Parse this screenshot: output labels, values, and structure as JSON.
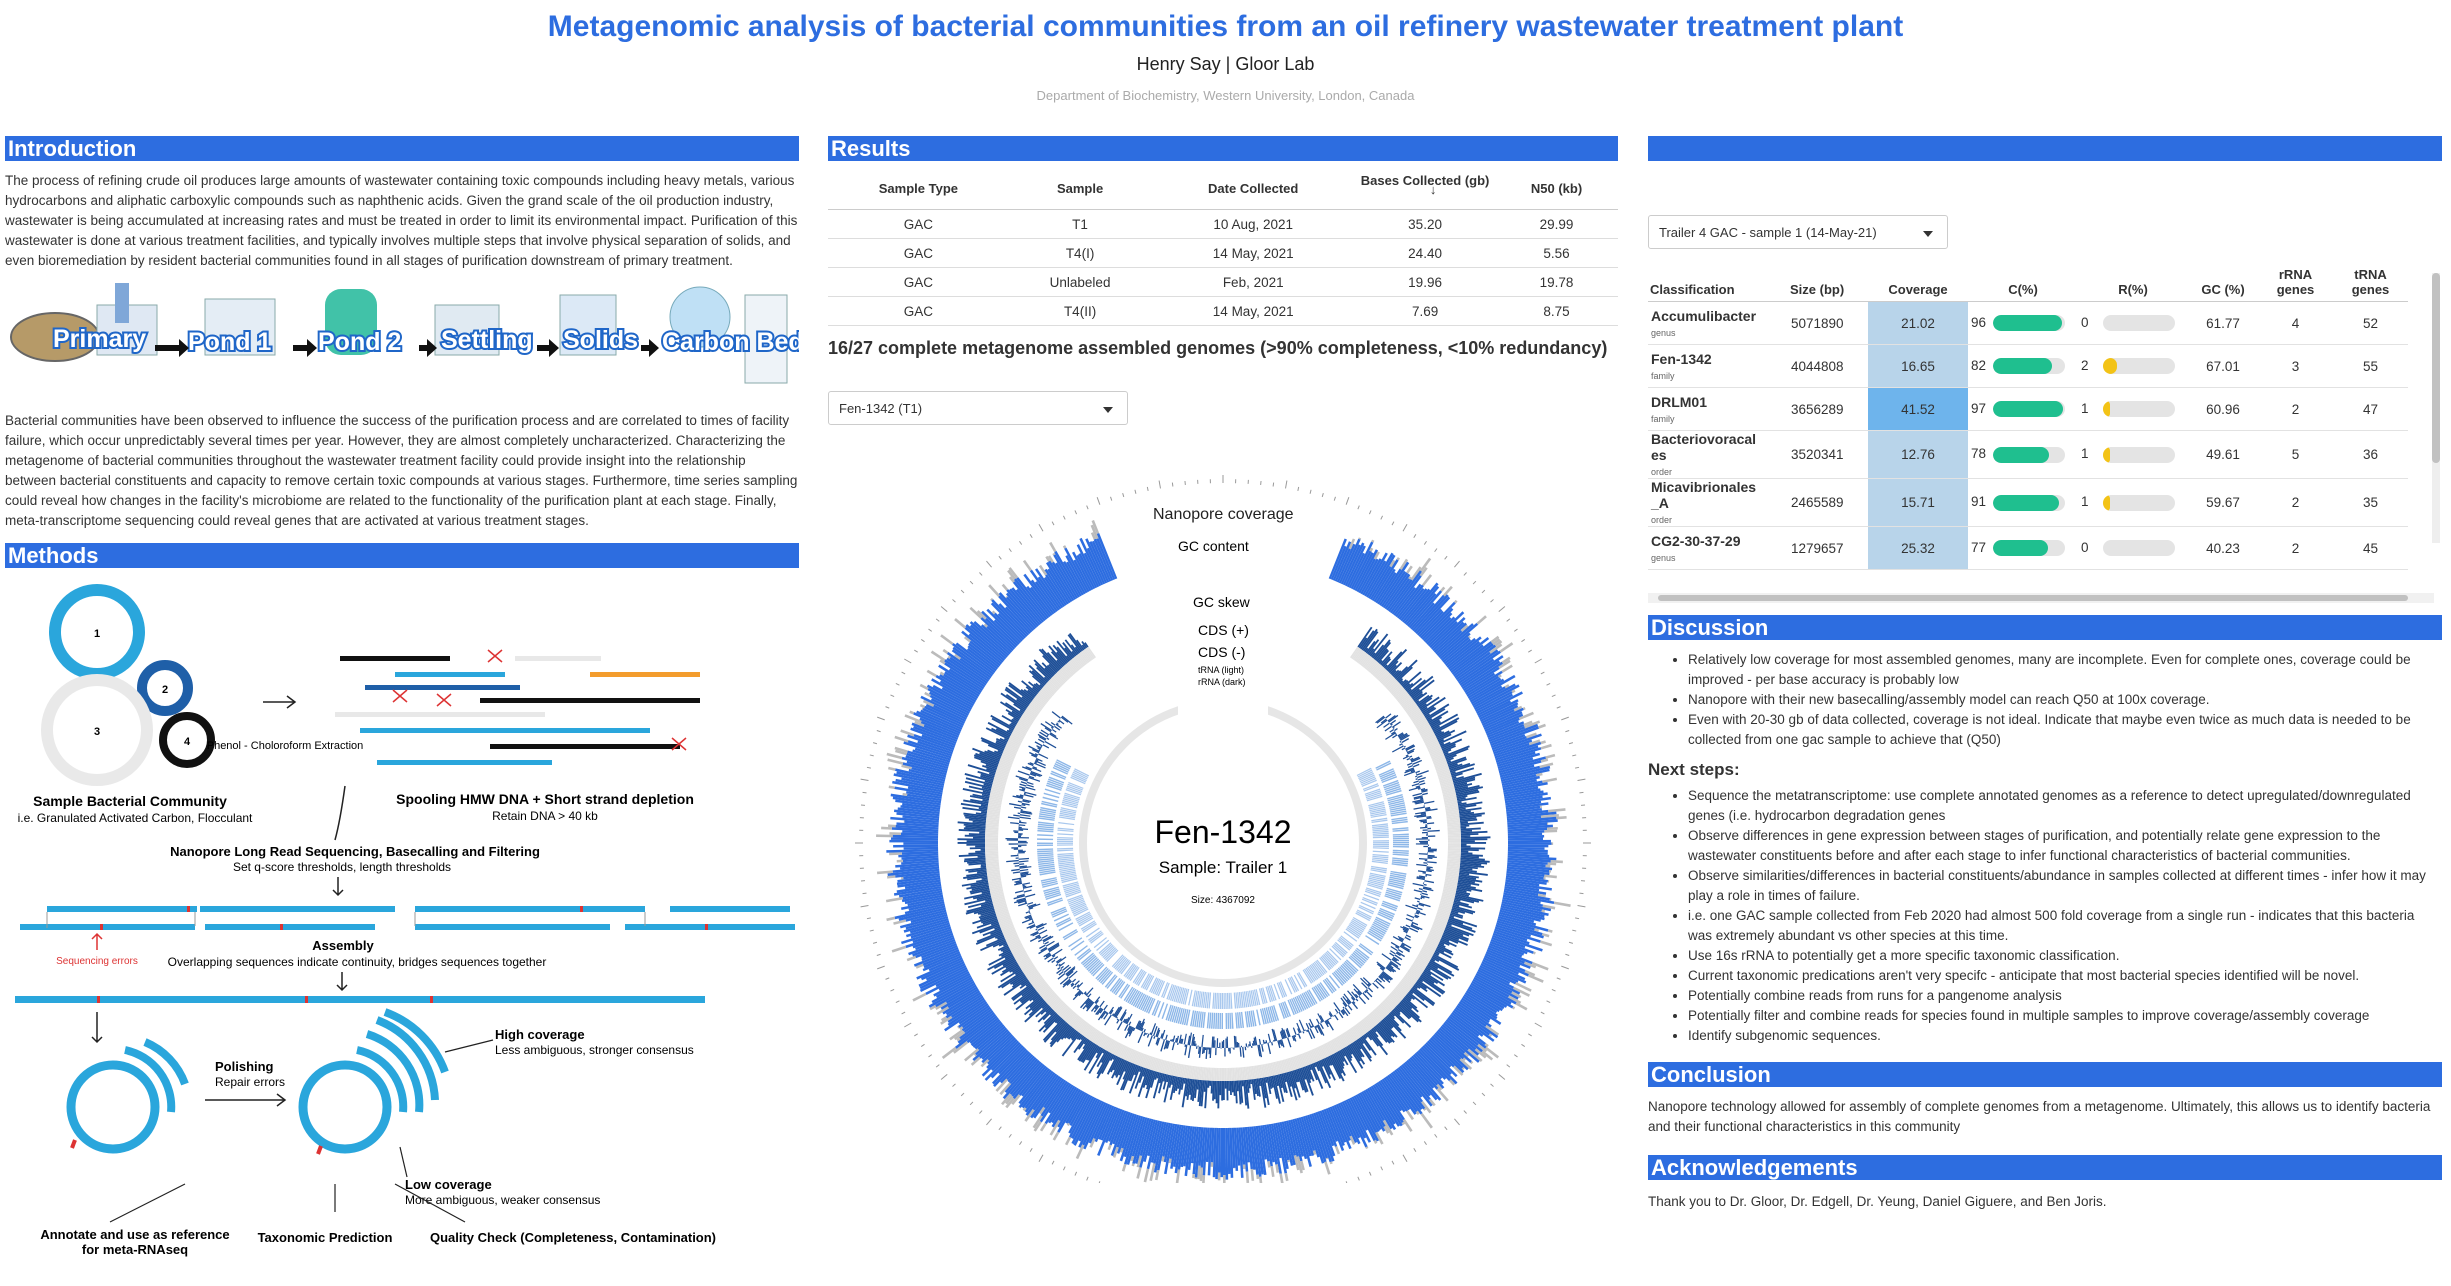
{
  "header": {
    "title": "Metagenomic analysis of bacterial communities from an oil refinery wastewater treatment plant",
    "authors": "Henry Say | Gloor Lab",
    "affiliation": "Department of Biochemistry, Western University, London, Canada"
  },
  "intro": {
    "heading": "Introduction",
    "p1": "The process of refining crude oil produces large amounts of wastewater containing toxic compounds including heavy metals, various hydrocarbons and aliphatic carboxylic compounds such as naphthenic acids. Given the grand scale of the oil production industry, wastewater is being accumulated at increasing rates and must be treated in order to limit its environmental impact. Purification of this wastewater is done at various treatment facilities, and typically involves multiple steps that involve physical separation of solids, and even bioremediation by resident bacterial communities found in all stages of purification downstream of primary treatment.",
    "stages": [
      "Primary",
      "Pond 1",
      "Pond 2",
      "Settling",
      "Solids",
      "Carbon Bed"
    ],
    "p2": "Bacterial communities have been observed to influence the success of the purification process and are correlated to times of facility failure, which occur unpredictably several times per year. However, they are almost completely uncharacterized. Characterizing the metagenome of bacterial communities throughout the wastewater treatment facility could provide insight into the relationship between bacterial constituents and capacity to remove certain toxic compounds at various stages. Furthermore, time series sampling could reveal how changes in the facility's microbiome are related to the functionality of the purification plant at each stage. Finally, meta-transcriptome sequencing could reveal genes that are activated at various treatment stages."
  },
  "methods": {
    "heading": "Methods",
    "circles": [
      "1",
      "2",
      "3",
      "4"
    ],
    "sample_title": "Sample Bacterial Community",
    "sample_sub": "i.e. Granulated Activated Carbon, Flocculant",
    "extraction": "Phenol - Choloroform Extraction",
    "spool_title": "Spooling HMW DNA + Short strand depletion",
    "spool_sub": "Retain DNA > 40 kb",
    "nanopore_title": "Nanopore Long Read Sequencing, Basecalling and Filtering",
    "nanopore_sub": "Set q-score thresholds, length thresholds",
    "seq_errors": "Sequencing errors",
    "assembly_title": "Assembly",
    "assembly_sub": "Overlapping sequences indicate continuity, bridges sequences together",
    "polishing_title": "Polishing",
    "polishing_sub": "Repair errors",
    "high_title": "High coverage",
    "high_sub": "Less ambiguous, stronger consensus",
    "low_title": "Low coverage",
    "low_sub": "More ambiguous, weaker consensus",
    "out1": "Annotate and use as reference",
    "out1b": "for meta-RNAseq",
    "out2": "Taxonomic Prediction",
    "out3": "Quality Check (Completeness, Contamination)"
  },
  "results": {
    "heading": "Results",
    "columns": [
      "Sample Type",
      "Sample",
      "Date Collected",
      "Bases Collected (gb)",
      "N50 (kb)"
    ],
    "sort_icon": "↓",
    "rows": [
      [
        "GAC",
        "T1",
        "10 Aug, 2021",
        "35.20",
        "29.99"
      ],
      [
        "GAC",
        "T4(I)",
        "14 May, 2021",
        "24.40",
        "5.56"
      ],
      [
        "GAC",
        "Unlabeled",
        "Feb, 2021",
        "19.96",
        "19.78"
      ],
      [
        "GAC",
        "T4(II)",
        "14 May, 2021",
        "7.69",
        "8.75"
      ]
    ],
    "summary": "16/27 complete metagenome assembled genomes (>90% completeness, <10% redundancy)",
    "genome_select": "Fen-1342 (T1)",
    "circos": {
      "tracks": [
        "Nanopore coverage",
        "GC content",
        "GC skew",
        "CDS (+)",
        "CDS (-)",
        "tRNA (light)",
        "rRNA (dark)"
      ],
      "genome": "Fen-1342",
      "sample": "Sample: Trailer 1",
      "size": "Size: 4367092"
    }
  },
  "genomes": {
    "select": "Trailer 4 GAC - sample 1 (14-May-21)",
    "columns": [
      "Classification",
      "Size (bp)",
      "Coverage",
      "C(%)",
      "R(%)",
      "GC (%)",
      "rRNA genes",
      "tRNA genes"
    ],
    "rows": [
      {
        "name": "Accumulibacter",
        "rank": "genus",
        "size": "5071890",
        "coverage": "21.02",
        "c": "96",
        "r": "0",
        "gc": "61.77",
        "rrna": "4",
        "trna": "52"
      },
      {
        "name": "Fen-1342",
        "rank": "family",
        "size": "4044808",
        "coverage": "16.65",
        "c": "82",
        "r": "2",
        "gc": "67.01",
        "rrna": "3",
        "trna": "55"
      },
      {
        "name": "DRLM01",
        "rank": "family",
        "size": "3656289",
        "coverage": "41.52",
        "c": "97",
        "r": "1",
        "gc": "60.96",
        "rrna": "2",
        "trna": "47"
      },
      {
        "name": "Bacteriovoracal",
        "name2": "es",
        "rank": "order",
        "size": "3520341",
        "coverage": "12.76",
        "c": "78",
        "r": "1",
        "gc": "49.61",
        "rrna": "5",
        "trna": "36"
      },
      {
        "name": "Micavibrionales",
        "name2": "_A",
        "rank": "order",
        "size": "2465589",
        "coverage": "15.71",
        "c": "91",
        "r": "1",
        "gc": "59.67",
        "rrna": "2",
        "trna": "35"
      },
      {
        "name": "CG2-30-37-29",
        "rank": "genus",
        "size": "1279657",
        "coverage": "25.32",
        "c": "77",
        "r": "0",
        "gc": "40.23",
        "rrna": "2",
        "trna": "45"
      }
    ]
  },
  "discussion": {
    "heading": "Discussion",
    "bullets": [
      "Relatively low coverage for most assembled genomes, many are incomplete. Even for complete ones, coverage could be improved - per base accuracy is probably low",
      "Nanopore with their new basecalling/assembly model can reach Q50 at 100x coverage.",
      "Even with 20-30 gb of data collected, coverage is not ideal. Indicate that maybe even twice as much data is needed to be collected from one gac sample to achieve that (Q50)"
    ],
    "next_heading": "Next steps:",
    "next": [
      "Sequence the metatranscriptome: use complete annotated genomes as a reference to detect upregulated/downregulated genes (i.e. hydrocarbon degradation genes",
      "Observe differences in gene expression between stages of purification, and potentially relate gene expression to the wastewater constituents before and after each stage to infer functional characteristics of bacterial communities.",
      "Observe similarities/differences in bacterial constituents/abundance in samples collected at different times - infer how it may play a role in times of failure.",
      "i.e. one GAC sample collected from Feb 2020 had almost 500 fold coverage from a single run - indicates that this bacteria was extremely abundant vs other species at this time.",
      "Use 16s rRNA to potentially get a more specific taxonomic classification.",
      "Current taxonomic predications aren't very specifc - anticipate that most bacterial species identified will be novel.",
      "Potentially combine reads from runs for a pangenome analysis",
      "Potentially filter and combine reads for species found in multiple samples to improve coverage/assembly coverage",
      "Identify subgenomic sequences."
    ]
  },
  "conclusion": {
    "heading": "Conclusion",
    "text": "Nanopore technology allowed for assembly of complete genomes from a metagenome. Ultimately, this allows us to identify bacteria and their functional characteristics in this community"
  },
  "ack": {
    "heading": "Acknowledgements",
    "text": "Thank you to Dr. Gloor, Dr. Edgell, Dr. Yeung, Daniel Giguere, and Ben Joris."
  },
  "colors": {
    "accent": "#2d6de0",
    "green": "#1fbf8f",
    "yellow": "#f3c316",
    "coverage_cell": "#b8d4ea"
  }
}
